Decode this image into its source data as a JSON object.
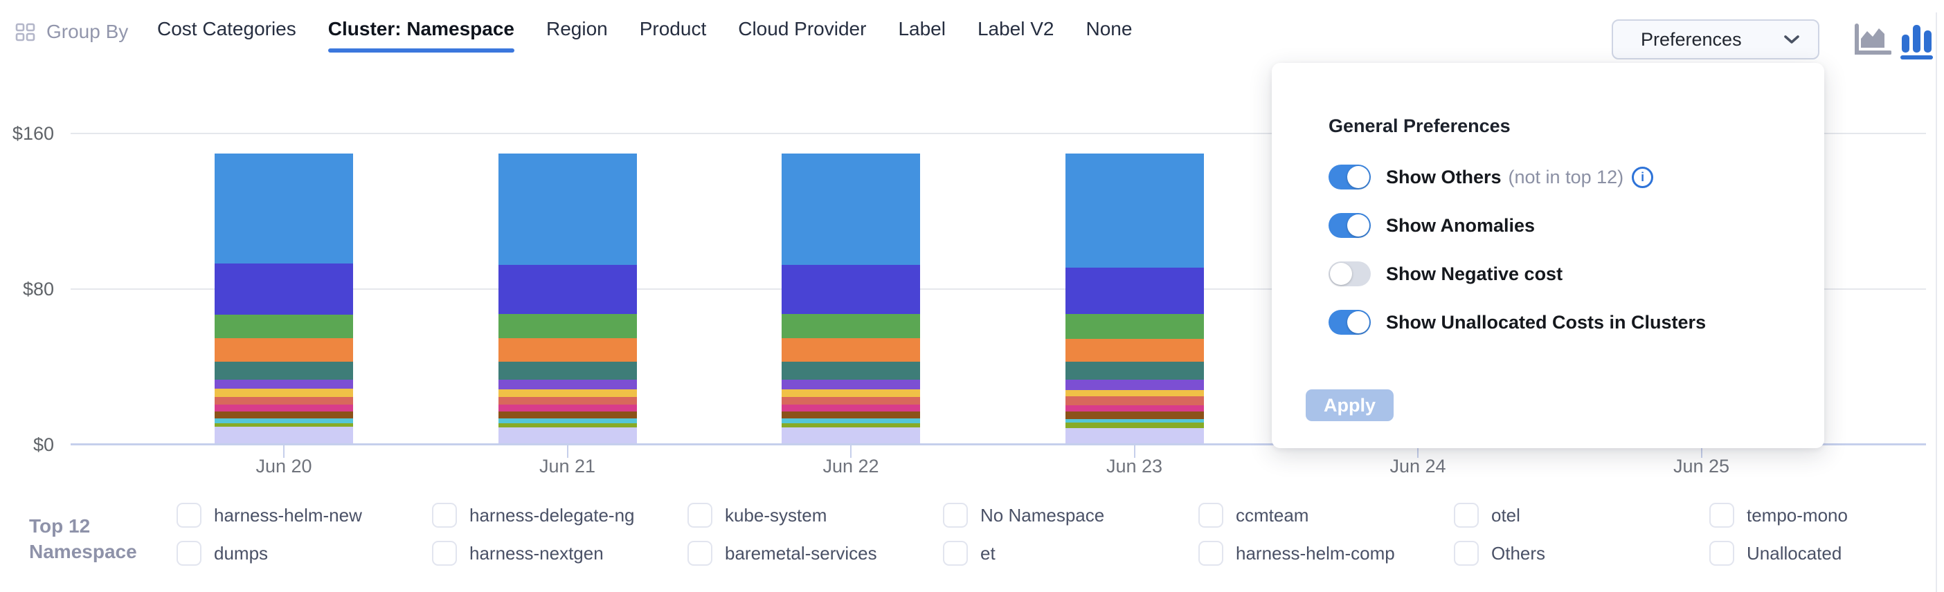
{
  "header": {
    "group_by_label": "Group By",
    "tabs": [
      {
        "label": "Cost Categories",
        "active": false
      },
      {
        "label": "Cluster: Namespace",
        "active": true
      },
      {
        "label": "Region",
        "active": false
      },
      {
        "label": "Product",
        "active": false
      },
      {
        "label": "Cloud Provider",
        "active": false
      },
      {
        "label": "Label",
        "active": false
      },
      {
        "label": "Label V2",
        "active": false
      },
      {
        "label": "None",
        "active": false
      }
    ],
    "preferences_button": {
      "label": "Preferences"
    },
    "chart_type_icons": {
      "options": [
        "area-chart-icon",
        "column-chart-icon"
      ],
      "active": "column-chart-icon"
    },
    "accent_color": "#3b77dd"
  },
  "preferences_panel": {
    "title": "General Preferences",
    "toggles": [
      {
        "label": "Show Others",
        "hint": "(not in top 12)",
        "info_icon": true,
        "on": true
      },
      {
        "label": "Show Anomalies",
        "hint": "",
        "info_icon": false,
        "on": true
      },
      {
        "label": "Show Negative cost",
        "hint": "",
        "info_icon": false,
        "on": false
      },
      {
        "label": "Show Unallocated Costs in Clusters",
        "hint": "",
        "info_icon": false,
        "on": true
      }
    ],
    "apply_label": "Apply",
    "apply_enabled": false,
    "toggle_on_color": "#3d87e1",
    "toggle_off_color": "#d9dde6"
  },
  "chart_data": {
    "type": "bar",
    "stacked": true,
    "title": "",
    "xlabel": "",
    "ylabel": "",
    "currency": "$",
    "ylim": [
      0,
      160
    ],
    "y_ticks": [
      {
        "label": "$0",
        "value": 0
      },
      {
        "label": "$80",
        "value": 80
      },
      {
        "label": "$160",
        "value": 160
      }
    ],
    "categories": [
      "Jun 20",
      "Jun 21",
      "Jun 22",
      "Jun 23",
      "Jun 24",
      "Jun 25"
    ],
    "bar_categories": [
      "Jun 20",
      "Jun 21",
      "Jun 22",
      "Jun 23"
    ],
    "note": "Columns for Jun 24 and Jun 25 are concealed by the open Preferences panel",
    "grid": true,
    "legend_position": "bottom",
    "series": [
      {
        "name": "harness-helm-new",
        "color": "#4392e0",
        "values": [
          56.5,
          57.0,
          57.0,
          58.5
        ]
      },
      {
        "name": "harness-delegate-ng",
        "color": "#4943d4",
        "values": [
          26.3,
          25.5,
          25.5,
          24.0
        ]
      },
      {
        "name": "kube-system",
        "color": "#5ba753",
        "values": [
          12.1,
          12.5,
          12.5,
          12.8
        ]
      },
      {
        "name": "No Namespace",
        "color": "#ee8640",
        "values": [
          12.1,
          12.0,
          12.0,
          11.7
        ]
      },
      {
        "name": "ccmteam",
        "color": "#3e7d78",
        "values": [
          9.2,
          9.2,
          9.2,
          9.2
        ]
      },
      {
        "name": "otel",
        "color": "#7c4fd3",
        "values": [
          4.6,
          4.8,
          4.8,
          5.3
        ]
      },
      {
        "name": "tempo-mono",
        "color": "#f0c147",
        "values": [
          4.3,
          3.9,
          3.9,
          3.2
        ]
      },
      {
        "name": "dumps",
        "color": "#d8685c",
        "values": [
          3.9,
          4.2,
          4.2,
          4.6
        ]
      },
      {
        "name": "harness-nextgen",
        "color": "#d83c8b",
        "values": [
          3.6,
          3.4,
          3.4,
          3.2
        ]
      },
      {
        "name": "baremetal-services",
        "color": "#8c5219",
        "values": [
          3.6,
          3.7,
          3.7,
          3.9
        ]
      },
      {
        "name": "et",
        "color": "#55c6d8",
        "values": [
          2.5,
          2.2,
          2.2,
          1.8
        ]
      },
      {
        "name": "harness-helm-comp",
        "color": "#87ab27",
        "values": [
          1.8,
          2.2,
          2.2,
          2.8
        ]
      },
      {
        "name": "Others",
        "color": "#cdccf6",
        "values": [
          8.5,
          8.4,
          8.4,
          8.2
        ]
      },
      {
        "name": "Unallocated",
        "color": "#cfeaf8",
        "values": [
          0.7,
          0.6,
          0.6,
          0.4
        ]
      }
    ]
  },
  "legend": {
    "title_line1": "Top 12",
    "title_line2": "Namespace",
    "items": [
      {
        "label": "harness-helm-new",
        "color": "#4392e0"
      },
      {
        "label": "dumps",
        "color": "#d8685c"
      },
      {
        "label": "harness-delegate-ng",
        "color": "#4943d4"
      },
      {
        "label": "harness-nextgen",
        "color": "#d83c8b"
      },
      {
        "label": "kube-system",
        "color": "#5ba753"
      },
      {
        "label": "baremetal-services",
        "color": "#8c5219"
      },
      {
        "label": "No Namespace",
        "color": "#ee8640"
      },
      {
        "label": "et",
        "color": "#55c6d8"
      },
      {
        "label": "ccmteam",
        "color": "#3e7d78"
      },
      {
        "label": "harness-helm-comp",
        "color": "#87ab27"
      },
      {
        "label": "otel",
        "color": "#7c4fd3"
      },
      {
        "label": "Others",
        "color": "#cdccf6"
      },
      {
        "label": "tempo-mono",
        "color": "#f0c147"
      },
      {
        "label": "Unallocated",
        "color": "#cfeaf8"
      }
    ]
  }
}
